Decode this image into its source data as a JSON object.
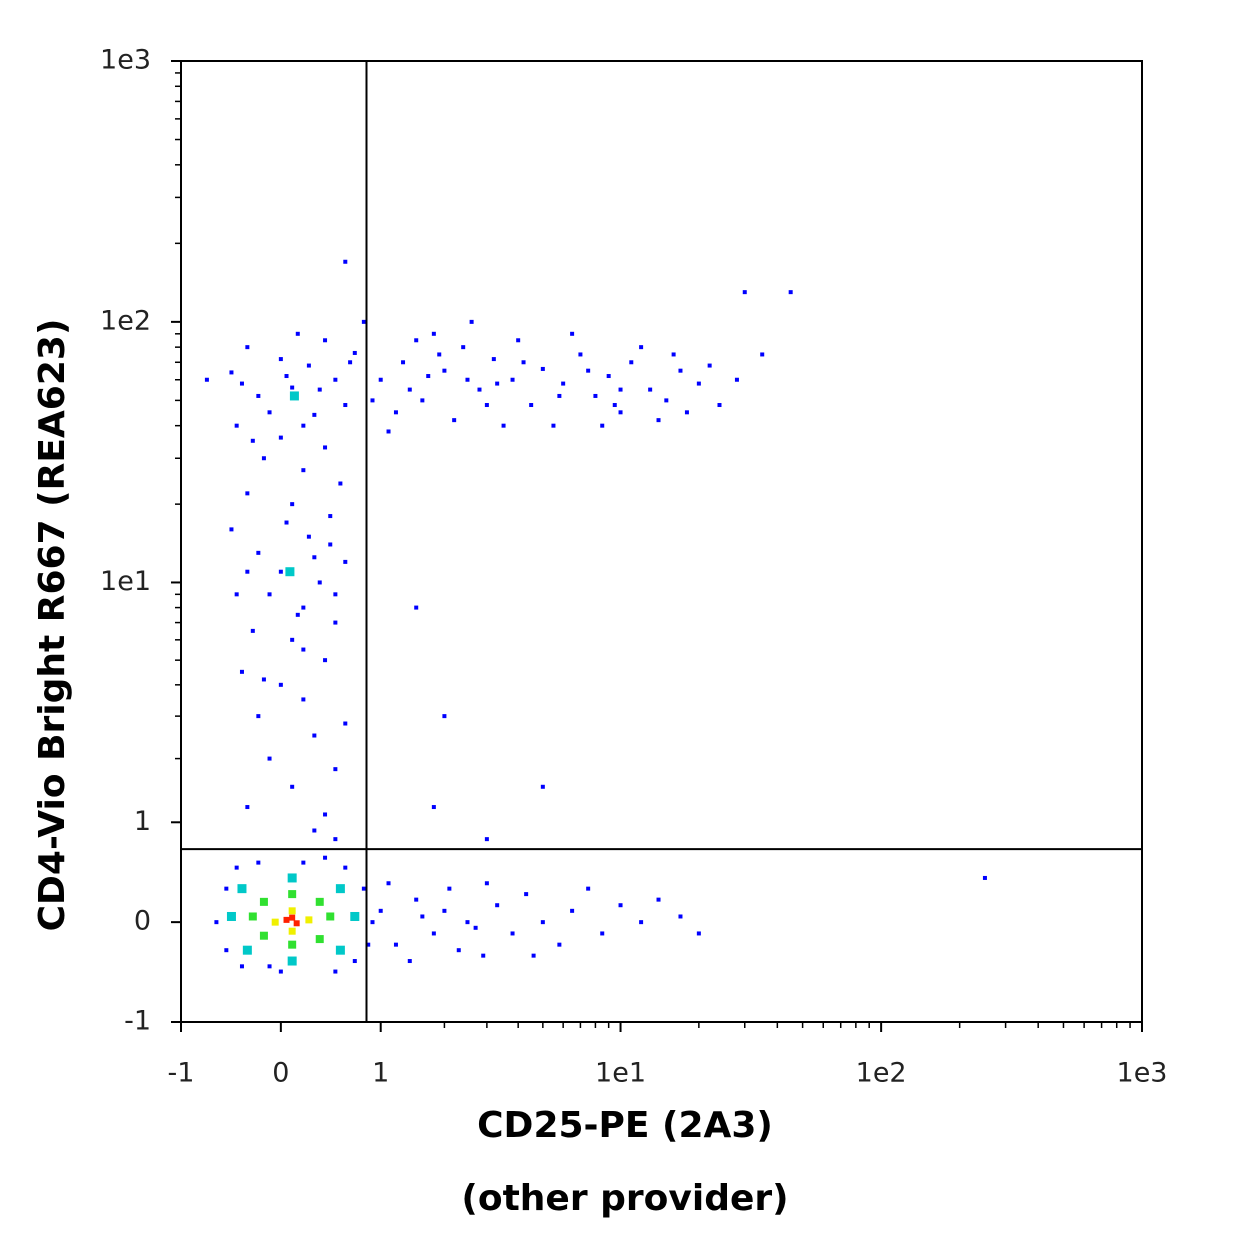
{
  "chart_data": {
    "type": "scatter",
    "xlabel": [
      "CD25-PE (2A3)",
      "(other provider)"
    ],
    "ylabel": "CD4-Vio Bright R667 (REA623)",
    "xscale": "asinh",
    "yscale": "asinh",
    "xlim": [
      -1,
      1000
    ],
    "ylim": [
      -1,
      1000
    ],
    "xticks": [
      -1,
      0,
      1,
      {
        "value": 10,
        "label": "1e1"
      },
      {
        "value": 100,
        "label": "1e2"
      },
      {
        "value": 1000,
        "label": "1e3"
      }
    ],
    "yticks": [
      -1,
      0,
      1,
      {
        "value": 10,
        "label": "1e1"
      },
      {
        "value": 100,
        "label": "1e2"
      },
      {
        "value": 1000,
        "label": "1e3"
      }
    ],
    "xminorticks": [
      2,
      3,
      4,
      5,
      6,
      7,
      8,
      9,
      20,
      30,
      40,
      50,
      60,
      70,
      80,
      90,
      200,
      300,
      400,
      500,
      600,
      700,
      800,
      900
    ],
    "yminorticks": [
      2,
      3,
      4,
      5,
      6,
      7,
      8,
      9,
      20,
      30,
      40,
      50,
      60,
      70,
      80,
      90,
      200,
      300,
      400,
      500,
      600,
      700,
      800,
      900
    ],
    "quadrant_gate": {
      "x": 0.83,
      "y": 0.69
    },
    "series": [
      {
        "color": "#0000ff",
        "x": [
          -0.3,
          0.1,
          0.4,
          -0.1,
          0.3,
          0.5,
          -0.2,
          0.2,
          0.6,
          0,
          -0.35,
          0.4,
          0.1,
          -0.25,
          0.5,
          0.2,
          -0.4,
          0.35,
          0,
          0.6,
          -0.2,
          0.25,
          -0.45,
          0.45,
          0.1,
          -0.3,
          0.55,
          0.2,
          -0.15,
          0.4,
          0,
          -0.4,
          0.3,
          0.6,
          -0.2,
          0.1,
          0.5,
          -0.45,
          0.25,
          0,
          0.7,
          -0.3,
          0.4,
          0.15,
          -0.1,
          0.35,
          -0.35,
          0.05,
          0.65,
          0.2,
          -0.25,
          0.15,
          0.3,
          -0.1,
          0.45,
          0.05,
          -0.3,
          0.5,
          0.2,
          -0.15,
          1,
          1.3,
          1.6,
          2,
          2.4,
          1.2,
          2.8,
          3.2,
          1.8,
          3.8,
          4.5,
          5,
          6,
          7,
          8,
          9,
          10,
          11,
          13,
          15,
          17,
          20,
          24,
          28,
          1.1,
          1.5,
          2.2,
          2.6,
          3.5,
          4,
          5.5,
          6.5,
          8.5,
          12,
          14,
          18,
          22,
          1.4,
          1.9,
          2.5,
          3,
          4.2,
          7.5,
          10,
          16,
          0.9,
          1.7,
          3.3,
          5.8,
          9.5,
          1,
          1.2,
          1.5,
          1.8,
          2.1,
          2.5,
          2.9,
          3.3,
          3.8,
          4.3,
          5,
          5.8,
          6.5,
          7.5,
          8.5,
          10,
          12,
          14,
          17,
          20,
          1.1,
          1.4,
          2.3,
          3,
          4.6,
          1.6,
          2,
          2.7,
          -0.6,
          -0.5,
          -0.5,
          -0.4,
          -0.35,
          0.8,
          0.7,
          0.9,
          0.6,
          0.5,
          0,
          0.2,
          -0.2,
          0.4,
          -0.1,
          0.85,
          -0.7,
          0.6,
          2,
          5,
          1.5,
          0.8,
          45,
          35,
          30,
          0.3,
          0.5,
          250,
          3,
          1.8
        ],
        "y": [
          1.2,
          1.5,
          1.1,
          2,
          2.5,
          1.8,
          3,
          3.5,
          2.8,
          4,
          4.5,
          5,
          6,
          6.5,
          7,
          8,
          9,
          10,
          11,
          12,
          13,
          15,
          16,
          18,
          20,
          22,
          24,
          27,
          30,
          33,
          36,
          40,
          44,
          48,
          52,
          56,
          60,
          64,
          68,
          72,
          76,
          80,
          85,
          90,
          45,
          55,
          58,
          62,
          70,
          40,
          35,
          7.5,
          12.5,
          9,
          14,
          17,
          11,
          9,
          5.5,
          4.2,
          60,
          70,
          50,
          65,
          80,
          45,
          55,
          72,
          90,
          60,
          48,
          66,
          58,
          75,
          52,
          62,
          45,
          70,
          55,
          50,
          65,
          58,
          48,
          60,
          38,
          85,
          42,
          100,
          40,
          85,
          40,
          90,
          40,
          80,
          42,
          45,
          68,
          55,
          75,
          60,
          48,
          70,
          65,
          55,
          75,
          50,
          62,
          58,
          52,
          48,
          0.1,
          -0.2,
          0.2,
          -0.1,
          0.3,
          0,
          -0.3,
          0.15,
          -0.1,
          0.25,
          0,
          -0.2,
          0.1,
          0.3,
          -0.1,
          0.15,
          0,
          0.2,
          0.05,
          -0.1,
          0.35,
          -0.35,
          -0.25,
          0.35,
          -0.3,
          0.05,
          0.1,
          -0.05,
          0,
          0.3,
          -0.25,
          0.5,
          -0.4,
          0.3,
          -0.35,
          0,
          0.5,
          -0.45,
          -0.45,
          0.55,
          0.55,
          0.6,
          -0.4,
          -0.2,
          60,
          170,
          3,
          1.5,
          8,
          100,
          130,
          75,
          130,
          0.9,
          0.8,
          0.4,
          0.8,
          1.2
        ]
      },
      {
        "color": "#00c8c8",
        "x": [
          -0.45,
          0.7,
          0.1,
          0.1,
          -0.35,
          0.55,
          -0.3,
          0.55,
          0.08,
          0.12
        ],
        "y": [
          0.05,
          0.05,
          0.4,
          -0.35,
          0.3,
          -0.25,
          -0.25,
          0.3,
          11,
          52
        ]
      },
      {
        "color": "#30e030",
        "x": [
          -0.25,
          0.45,
          0.1,
          0.1,
          -0.15,
          0.35,
          -0.15,
          0.35
        ],
        "y": [
          0.05,
          0.05,
          0.25,
          -0.2,
          0.18,
          -0.15,
          -0.12,
          0.18
        ]
      },
      {
        "color": "#f0f000",
        "x": [
          -0.05,
          0.25,
          0.1,
          0.1
        ],
        "y": [
          0,
          0.02,
          0.1,
          -0.08
        ]
      },
      {
        "color": "#ff2000",
        "x": [
          0.05,
          0.14,
          0.1
        ],
        "y": [
          0.02,
          -0.01,
          0.04
        ]
      }
    ]
  }
}
